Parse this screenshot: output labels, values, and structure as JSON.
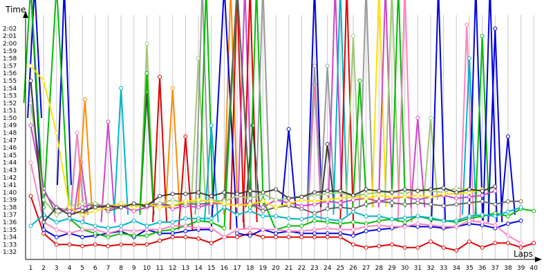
{
  "chart_data": {
    "type": "line",
    "title": "",
    "xlabel": "Laps",
    "ylabel": "Time",
    "x": [
      1,
      2,
      3,
      4,
      5,
      6,
      7,
      8,
      9,
      10,
      11,
      12,
      13,
      14,
      15,
      16,
      17,
      18,
      19,
      20,
      21,
      22,
      23,
      24,
      25,
      26,
      27,
      28,
      29,
      30,
      31,
      32,
      33,
      34,
      35,
      36,
      37,
      38,
      39,
      40
    ],
    "xlim": [
      0.6,
      40.2
    ],
    "ylim": [
      91,
      123.8
    ],
    "y_ticks": [
      {
        "value": 92,
        "label": "1:32"
      },
      {
        "value": 93,
        "label": "1:33"
      },
      {
        "value": 94,
        "label": "1:34"
      },
      {
        "value": 95,
        "label": "1:35"
      },
      {
        "value": 96,
        "label": "1:36"
      },
      {
        "value": 97,
        "label": "1:37"
      },
      {
        "value": 98,
        "label": "1:38"
      },
      {
        "value": 99,
        "label": "1:39"
      },
      {
        "value": 100,
        "label": "1:40"
      },
      {
        "value": 101,
        "label": "1:41"
      },
      {
        "value": 102,
        "label": "1:42"
      },
      {
        "value": 103,
        "label": "1:43"
      },
      {
        "value": 104,
        "label": "1:44"
      },
      {
        "value": 105,
        "label": "1:45"
      },
      {
        "value": 106,
        "label": "1:46"
      },
      {
        "value": 107,
        "label": "1:47"
      },
      {
        "value": 108,
        "label": "1:48"
      },
      {
        "value": 109,
        "label": "1:49"
      },
      {
        "value": 110,
        "label": "1:50"
      },
      {
        "value": 111,
        "label": "1:51"
      },
      {
        "value": 112,
        "label": "1:52"
      },
      {
        "value": 113,
        "label": "1:53"
      },
      {
        "value": 114,
        "label": "1:54"
      },
      {
        "value": 115,
        "label": "1:55"
      },
      {
        "value": 116,
        "label": "1:56"
      },
      {
        "value": 117,
        "label": "1:57"
      },
      {
        "value": 118,
        "label": "1:58"
      },
      {
        "value": 119,
        "label": "1:59"
      },
      {
        "value": 120,
        "label": "2:00"
      },
      {
        "value": 121,
        "label": "2:01"
      },
      {
        "value": 122,
        "label": "2:02"
      }
    ],
    "grid": true,
    "legend": "none",
    "series": [
      {
        "color": "#e00000",
        "values": [
          99.5,
          94.5,
          93,
          93,
          92.8,
          93,
          92.8,
          93,
          93,
          93,
          93.5,
          94,
          94,
          93.8,
          93.2,
          94,
          94,
          94.5,
          94,
          94,
          94,
          94,
          94,
          94,
          94,
          93,
          92.6,
          92.8,
          93,
          92.6,
          92.6,
          93.4,
          92.6,
          92.2,
          93.4,
          92.6,
          93.2,
          93.2,
          92.6,
          93.2
        ]
      },
      {
        "color": "#0000dd",
        "values": [
          130,
          95,
          94,
          94.5,
          94,
          94.2,
          94.5,
          94.8,
          94,
          95,
          94.5,
          94.5,
          94.8,
          95,
          95,
          130,
          94.5,
          94.2,
          95,
          94.5,
          94.8,
          94.5,
          94.5,
          94.5,
          94.5,
          94.2,
          94.8,
          95,
          95.2,
          95.5,
          95.4,
          95.4,
          95.2,
          95.4,
          95.8,
          95.6,
          95.2,
          95.8,
          96.2,
          null
        ]
      },
      {
        "color": "#00bb00",
        "values": [
          130,
          98,
          130,
          96.5,
          95,
          94.5,
          94,
          94.5,
          94.2,
          94.2,
          94.8,
          95,
          95.5,
          96.2,
          96,
          95.2,
          130,
          98,
          99,
          95,
          95.5,
          95.5,
          96.2,
          96,
          95.8,
          96,
          95.8,
          96.2,
          96.4,
          96,
          96.8,
          96.4,
          96.2,
          96,
          96.5,
          96.8,
          97.2,
          96.8,
          97.8,
          97.5
        ]
      },
      {
        "color": "#ff80c0",
        "values": [
          104,
          96,
          95,
          94.5,
          95,
          95,
          94.5,
          95,
          94.8,
          95,
          95,
          95.5,
          95.5,
          95.2,
          95.2,
          94,
          95,
          95.2,
          95,
          95,
          94.8,
          94.8,
          95,
          95.2,
          95,
          95,
          95.4,
          95.6,
          95.4,
          95.4,
          95.8,
          95.6,
          95.4,
          95.4,
          96.2,
          96,
          95.6,
          94.2,
          93.2,
          null
        ]
      },
      {
        "color": "#00b4c8",
        "values": [
          95.5,
          97,
          96,
          96.5,
          96,
          95.5,
          95.2,
          95.5,
          96.2,
          95.5,
          96,
          96,
          96.5,
          96.5,
          96.5,
          98,
          97,
          97.5,
          96.8,
          96.8,
          96.5,
          96.4,
          96.8,
          96.4,
          96.2,
          97.4,
          96.8,
          96.8,
          96.4,
          96.6,
          96.8,
          96.6,
          96.2,
          96.2,
          96.8,
          97,
          96.8,
          97.4,
          98,
          null
        ]
      },
      {
        "color": "#666666",
        "values": [
          112,
          100.5,
          97,
          98,
          97,
          98.5,
          97.5,
          98,
          98.5,
          98,
          98.5,
          98.2,
          98.5,
          98.4,
          98.6,
          99,
          130,
          98.5,
          97.5,
          98,
          98.2,
          97.8,
          97.2,
          97.8,
          98,
          97.8,
          98.4,
          98.8,
          98.6,
          98.4,
          98.6,
          98.4,
          98.2,
          98.4,
          98.6,
          98.8,
          98.4,
          98.8,
          98.8,
          null
        ]
      },
      {
        "color": "#cc44cc",
        "values": [
          109,
          100,
          98,
          97.5,
          98,
          98.5,
          97.8,
          98.2,
          97.5,
          98,
          98.5,
          97.8,
          98.2,
          98,
          98.5,
          98.5,
          98.2,
          98.6,
          98,
          99,
          98.6,
          98.2,
          98.4,
          98.8,
          98.6,
          99,
          99.2,
          98.8,
          99.2,
          99.4,
          99,
          99.4,
          99.6,
          99.2,
          99.4,
          99.6,
          100.2,
          null,
          null,
          null
        ]
      },
      {
        "color": "#a0c878",
        "values": [
          112,
          99,
          97,
          98.2,
          98.5,
          98.5,
          98.2,
          98.5,
          98.2,
          98.5,
          98.5,
          99,
          98.5,
          98.8,
          99,
          98.8,
          99.5,
          99.2,
          99.8,
          99,
          99.2,
          99.5,
          99.6,
          99.8,
          100,
          99.5,
          99.8,
          100,
          100.2,
          99.8,
          100.4,
          100.2,
          100,
          100.6,
          100.4,
          100.2,
          100.8,
          null,
          null,
          null
        ]
      },
      {
        "color": "#ffe000",
        "values": [
          117,
          115,
          108,
          98,
          97,
          97.5,
          98,
          98.5,
          98,
          98.5,
          98,
          98.2,
          98.8,
          99,
          98.8,
          98.5,
          98.2,
          98.4,
          98.8,
          98,
          98.5,
          99,
          98.8,
          99,
          99.2,
          99.4,
          99.2,
          99.6,
          99.4,
          99.4,
          99.6,
          99.4,
          99.8,
          99.8,
          100,
          100.4,
          null,
          null,
          null,
          null
        ]
      },
      {
        "color": "#3a3a3a",
        "values": [
          115,
          96,
          98,
          97,
          97.5,
          98,
          98.2,
          98,
          98.5,
          98.2,
          99.5,
          99.8,
          99.8,
          100,
          99.5,
          100,
          99.8,
          100.2,
          100,
          100.4,
          99.2,
          99.4,
          100,
          100.2,
          100.2,
          99.6,
          100.4,
          100.2,
          100,
          100.4,
          100.2,
          100.4,
          100.6,
          100,
          100.4,
          100.2,
          100.8,
          null,
          null,
          null
        ]
      }
    ],
    "spikes": [
      {
        "color": "#00bb00",
        "x": 1,
        "y": 130,
        "from": 112
      },
      {
        "color": "#0000dd",
        "x": 1.3,
        "y": 130,
        "from": 110
      },
      {
        "color": "#0000dd",
        "x": 3.6,
        "y": 130,
        "from": 101
      },
      {
        "color": "#00b4c8",
        "x": 4.6,
        "y": 108,
        "from": 97
      },
      {
        "color": "#ff80c0",
        "x": 4.6,
        "y": 108,
        "from": 96
      },
      {
        "color": "#cc44cc",
        "x": 4.9,
        "y": 104,
        "from": 97
      },
      {
        "color": "#ff8c00",
        "x": 5.2,
        "y": 112.5,
        "from": 98
      },
      {
        "color": "#cc44cc",
        "x": 7,
        "y": 109.5,
        "from": 96
      },
      {
        "color": "#00b4c8",
        "x": 8,
        "y": 114,
        "from": 97
      },
      {
        "color": "#3a3a3a",
        "x": 10,
        "y": 113.5,
        "from": 97
      },
      {
        "color": "#a0c878",
        "x": 10,
        "y": 120,
        "from": 98
      },
      {
        "color": "#00bb00",
        "x": 10,
        "y": 116,
        "from": 97
      },
      {
        "color": "#e00000",
        "x": 11,
        "y": 115.5,
        "from": 96
      },
      {
        "color": "#ff8c00",
        "x": 12,
        "y": 114,
        "from": 98
      },
      {
        "color": "#e00000",
        "x": 13,
        "y": 107.5,
        "from": 95
      },
      {
        "color": "#a0c878",
        "x": 14,
        "y": 118,
        "from": 99
      },
      {
        "color": "#999999",
        "x": 14.3,
        "y": 130,
        "from": 97
      },
      {
        "color": "#00bb00",
        "x": 14.6,
        "y": 130,
        "from": 98
      },
      {
        "color": "#00b4c8",
        "x": 15,
        "y": 109,
        "from": 96
      },
      {
        "color": "#ff8c00",
        "x": 16.5,
        "y": 130,
        "from": 97
      },
      {
        "color": "#e00000",
        "x": 17,
        "y": 130,
        "from": 95
      },
      {
        "color": "#cc44cc",
        "x": 17.6,
        "y": 130,
        "from": 98
      },
      {
        "color": "#e00000",
        "x": 18,
        "y": 130,
        "from": 96
      },
      {
        "color": "#3a3a3a",
        "x": 18.2,
        "y": 109,
        "from": 98
      },
      {
        "color": "#00bb00",
        "x": 18.5,
        "y": 130,
        "from": 98
      },
      {
        "color": "#999999",
        "x": 19,
        "y": 130,
        "from": 99
      },
      {
        "color": "#0000dd",
        "x": 21,
        "y": 108.5,
        "from": 98
      },
      {
        "color": "#0000dd",
        "x": 23,
        "y": 130,
        "from": 99
      },
      {
        "color": "#ff80c0",
        "x": 23,
        "y": 114.5,
        "from": 96
      },
      {
        "color": "#999999",
        "x": 23,
        "y": 117,
        "from": 98
      },
      {
        "color": "#999999",
        "x": 24,
        "y": 117,
        "from": 99
      },
      {
        "color": "#3a3a3a",
        "x": 24,
        "y": 106.5,
        "from": 98
      },
      {
        "color": "#cc44cc",
        "x": 24.6,
        "y": 130,
        "from": 98
      },
      {
        "color": "#00b4c8",
        "x": 25,
        "y": 130,
        "from": 97
      },
      {
        "color": "#e00000",
        "x": 25.5,
        "y": 130,
        "from": 94
      },
      {
        "color": "#a0c878",
        "x": 26,
        "y": 121,
        "from": 99
      },
      {
        "color": "#00bb00",
        "x": 26.5,
        "y": 115,
        "from": 98
      },
      {
        "color": "#999999",
        "x": 27,
        "y": 130,
        "from": 98
      },
      {
        "color": "#ffe000",
        "x": 28,
        "y": 130,
        "from": 98
      },
      {
        "color": "#cc44cc",
        "x": 28.5,
        "y": 130,
        "from": 98
      },
      {
        "color": "#a0c878",
        "x": 29,
        "y": 130,
        "from": 99
      },
      {
        "color": "#00bb00",
        "x": 29.5,
        "y": 130,
        "from": 98
      },
      {
        "color": "#ff80c0",
        "x": 30,
        "y": 130,
        "from": 96
      },
      {
        "color": "#cc44cc",
        "x": 31,
        "y": 110,
        "from": 98
      },
      {
        "color": "#a0c878",
        "x": 32,
        "y": 110,
        "from": 99
      },
      {
        "color": "#0000dd",
        "x": 32.6,
        "y": 130,
        "from": 96
      },
      {
        "color": "#ff80c0",
        "x": 34.8,
        "y": 122.5,
        "from": 96
      },
      {
        "color": "#00b4c8",
        "x": 35,
        "y": 118,
        "from": 97
      },
      {
        "color": "#0000dd",
        "x": 35.5,
        "y": 130,
        "from": 96
      },
      {
        "color": "#00bb00",
        "x": 36,
        "y": 121,
        "from": 97
      },
      {
        "color": "#0000dd",
        "x": 36.6,
        "y": 130,
        "from": 96
      },
      {
        "color": "#0000dd",
        "x": 37,
        "y": 122,
        "from": 96
      },
      {
        "color": "#0000dd",
        "x": 38,
        "y": 107.5,
        "from": 97
      }
    ]
  }
}
